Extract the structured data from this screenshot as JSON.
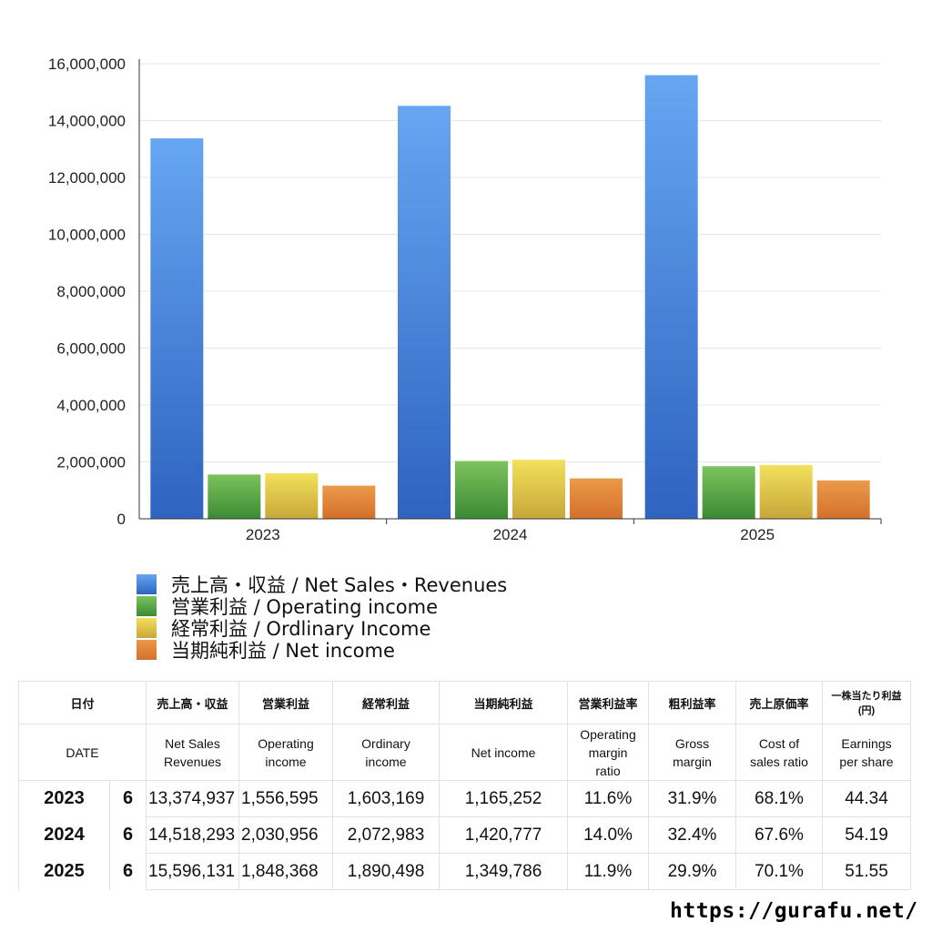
{
  "chart_data": {
    "type": "bar",
    "categories": [
      "2023",
      "2024",
      "2025"
    ],
    "ylim": [
      0,
      16000000
    ],
    "yticks": [
      "0",
      "2,000,000",
      "4,000,000",
      "6,000,000",
      "8,000,000",
      "10,000,000",
      "12,000,000",
      "14,000,000",
      "16,000,000"
    ],
    "ytick_values": [
      0,
      2000000,
      4000000,
      6000000,
      8000000,
      10000000,
      12000000,
      14000000,
      16000000
    ],
    "grid": true,
    "legend_placement": "bottom",
    "series": [
      {
        "name": "売上高・収益 / Net Sales・Revenues",
        "values": [
          13374937,
          14518293,
          15596131
        ],
        "color_top": "#66a6f2",
        "color_bottom": "#2e63c0"
      },
      {
        "name": "営業利益 / Operating income",
        "values": [
          1556595,
          2030956,
          1848368
        ],
        "color_top": "#7cc35c",
        "color_bottom": "#3b8a34"
      },
      {
        "name": "経常利益 / Ordlinary Income",
        "values": [
          1603169,
          2072983,
          1890498
        ],
        "color_top": "#f2e15a",
        "color_bottom": "#c7a63a"
      },
      {
        "name": "当期純利益 / Net income",
        "values": [
          1165252,
          1420777,
          1349786
        ],
        "color_top": "#eb9a4a",
        "color_bottom": "#d46f2c"
      }
    ]
  },
  "table": {
    "header_jp": [
      "日付",
      "売上高・収益",
      "営業利益",
      "経常利益",
      "当期純利益",
      "営業利益率",
      "粗利益率",
      "売上原価率",
      "一株当たり利益\n(円)"
    ],
    "header_en": [
      "DATE",
      "Net Sales\nRevenues",
      "Operating\nincome",
      "Ordinary\nincome",
      "Net income",
      "Operating\nmargin\nratio",
      "Gross\nmargin",
      "Cost of\nsales ratio",
      "Earnings\nper share"
    ],
    "rows": [
      [
        "2023",
        "6",
        "13,374,937",
        "1,556,595",
        "1,603,169",
        "1,165,252",
        "11.6%",
        "31.9%",
        "68.1%",
        "44.34"
      ],
      [
        "2024",
        "6",
        "14,518,293",
        "2,030,956",
        "2,072,983",
        "1,420,777",
        "14.0%",
        "32.4%",
        "67.6%",
        "54.19"
      ],
      [
        "2025",
        "6",
        "15,596,131",
        "1,848,368",
        "1,890,498",
        "1,349,786",
        "11.9%",
        "29.9%",
        "70.1%",
        "51.55"
      ]
    ]
  },
  "footer": {
    "url": "https://gurafu.net/"
  }
}
